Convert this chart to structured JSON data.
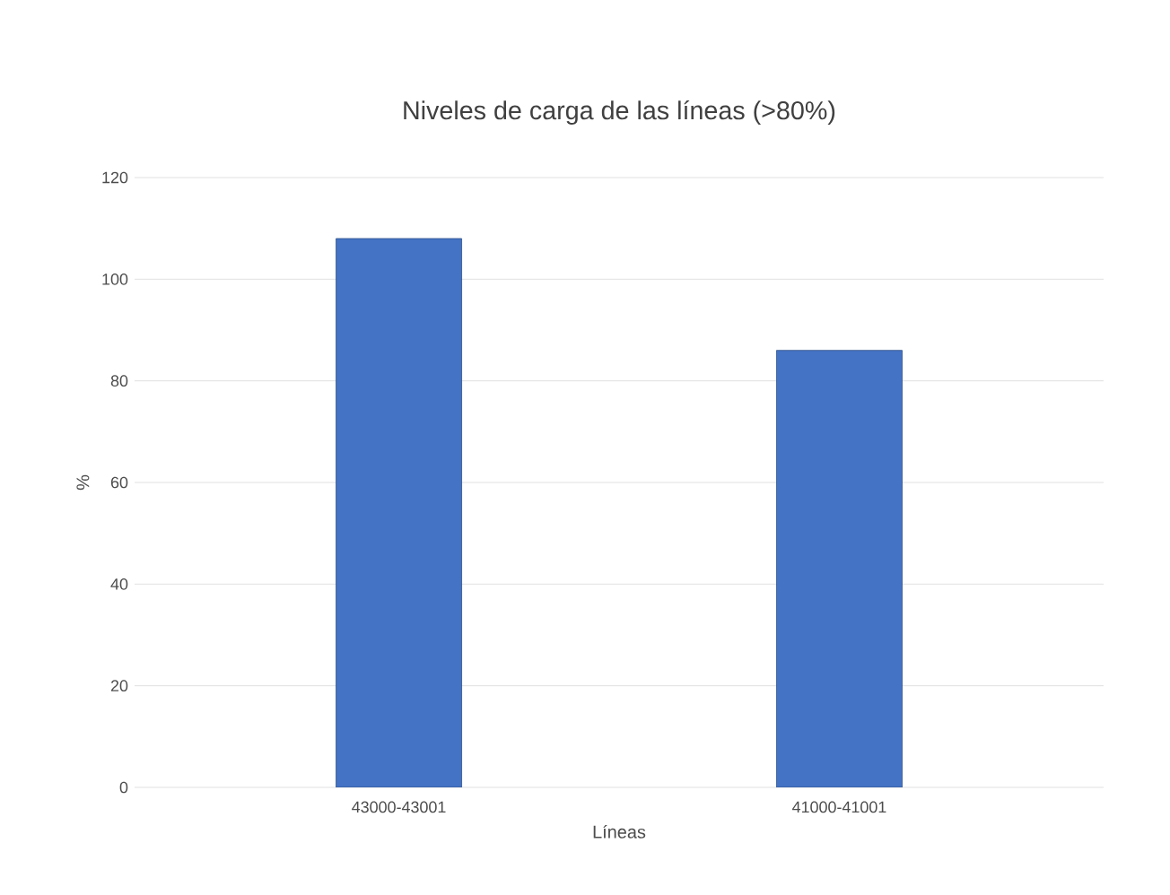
{
  "chart_data": {
    "type": "bar",
    "title": "Niveles de carga de las líneas (>80%)",
    "xlabel": "Líneas",
    "ylabel": "%",
    "categories": [
      "43000-43001",
      "41000-41001"
    ],
    "values": [
      108,
      86
    ],
    "color": "#4472c4",
    "ylim": [
      0,
      120
    ],
    "yticks": [
      0,
      20,
      40,
      60,
      80,
      100,
      120
    ],
    "grid": "y"
  }
}
